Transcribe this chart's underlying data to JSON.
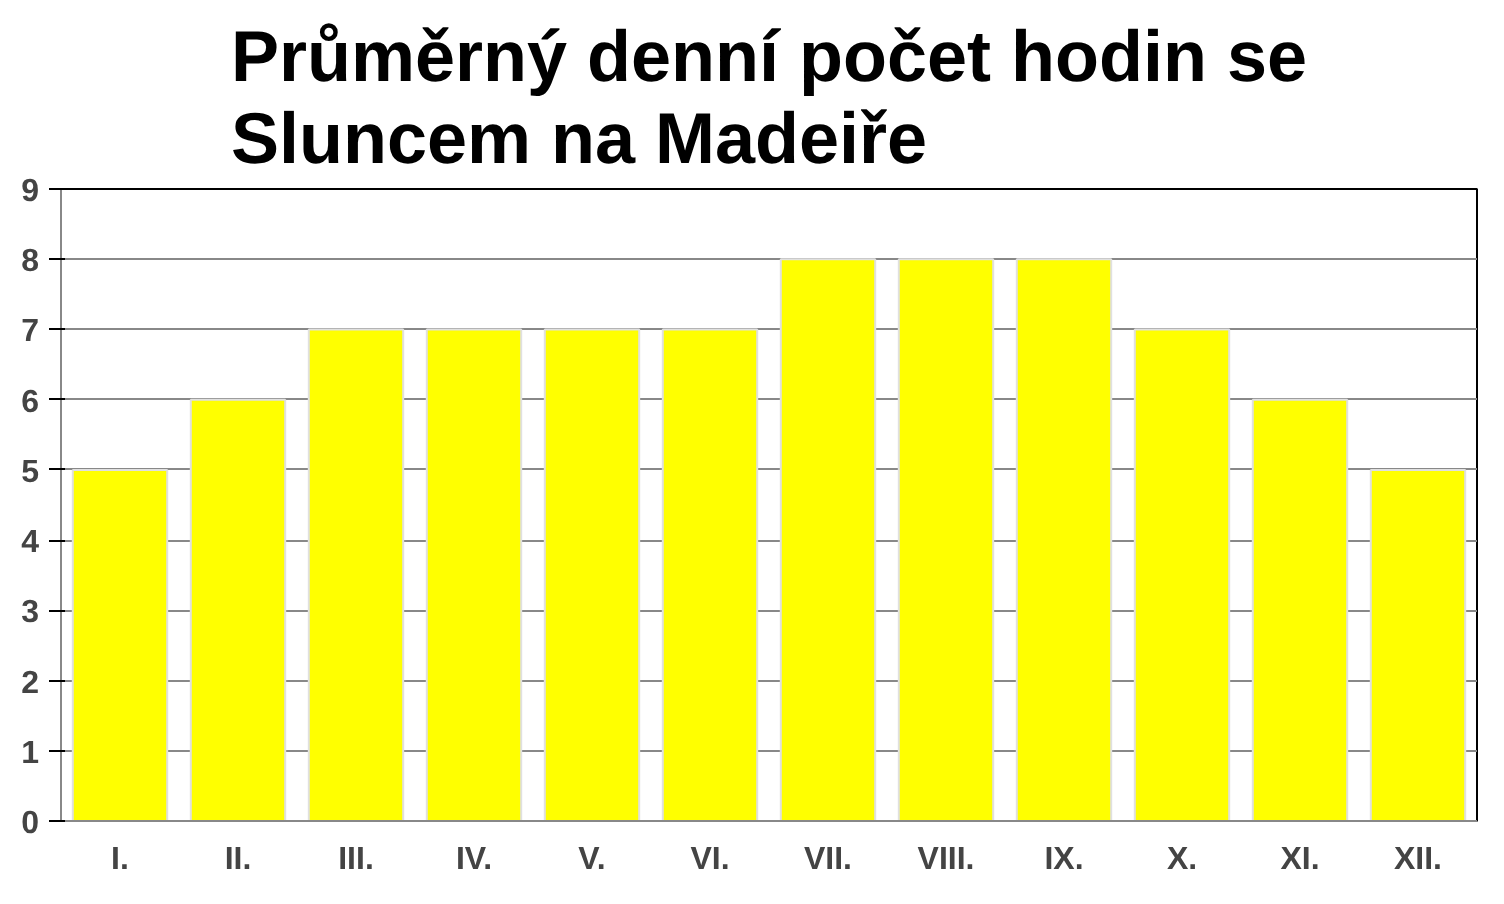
{
  "chart_data": {
    "type": "bar",
    "title": "Průměrný denní počet hodin se\nSluncem na Madeiře",
    "categories": [
      "I.",
      "II.",
      "III.",
      "IV.",
      "V.",
      "VI.",
      "VII.",
      "VIII.",
      "IX.",
      "X.",
      "XI.",
      "XII."
    ],
    "values": [
      5,
      6,
      7,
      7,
      7,
      7,
      8,
      8,
      8,
      7,
      6,
      5
    ],
    "color": "#ffff00",
    "ylim": [
      0,
      9
    ],
    "yticks": [
      0,
      1,
      2,
      3,
      4,
      5,
      6,
      7,
      8,
      9
    ],
    "grid": "y"
  }
}
